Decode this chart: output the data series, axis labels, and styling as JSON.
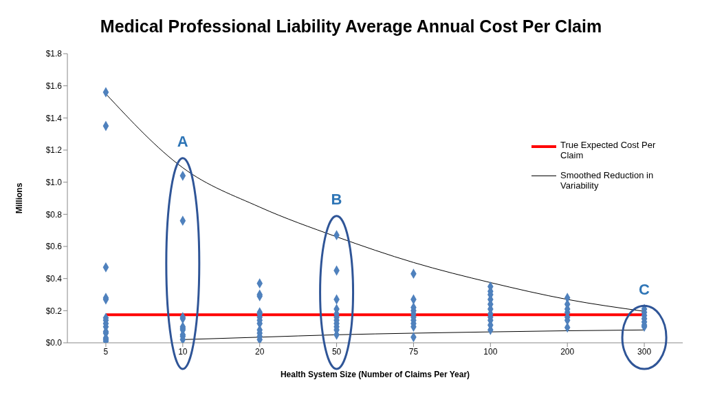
{
  "chart_data": {
    "type": "scatter",
    "title": "Medical Professional Liability Average Annual Cost Per Claim",
    "xlabel": "Health System Size (Number of Claims Per Year)",
    "ylabel": "Millions",
    "categories": [
      "5",
      "10",
      "20",
      "50",
      "75",
      "100",
      "200",
      "300"
    ],
    "ylim": [
      0,
      1.8
    ],
    "yticks": [
      {
        "value": 0,
        "label": "$0.0"
      },
      {
        "value": 0.2,
        "label": "$0.2"
      },
      {
        "value": 0.4,
        "label": "$0.4"
      },
      {
        "value": 0.6,
        "label": "$0.6"
      },
      {
        "value": 0.8,
        "label": "$0.8"
      },
      {
        "value": 1,
        "label": "$1.0"
      },
      {
        "value": 1.2,
        "label": "$1.2"
      },
      {
        "value": 1.4,
        "label": "$1.4"
      },
      {
        "value": 1.6,
        "label": "$1.6"
      },
      {
        "value": 1.8,
        "label": "$1.8"
      }
    ],
    "grid": false,
    "legend": "top right",
    "series": [
      {
        "marker": "diamond",
        "color": "#4f81bd",
        "x": [
          "5",
          "5",
          "5",
          "5",
          "5",
          "5",
          "5",
          "5",
          "5",
          "5",
          "5",
          "5",
          "5",
          "5",
          "10",
          "10",
          "10",
          "10",
          "10",
          "10",
          "10",
          "10",
          "10",
          "10",
          "20",
          "20",
          "20",
          "20",
          "20",
          "20",
          "20",
          "20",
          "20",
          "20",
          "20",
          "20",
          "50",
          "50",
          "50",
          "50",
          "50",
          "50",
          "50",
          "50",
          "50",
          "50",
          "50",
          "75",
          "75",
          "75",
          "75",
          "75",
          "75",
          "75",
          "75",
          "75",
          "75",
          "100",
          "100",
          "100",
          "100",
          "100",
          "100",
          "100",
          "100",
          "100",
          "100",
          "100",
          "200",
          "200",
          "200",
          "200",
          "200",
          "200",
          "200",
          "300",
          "300",
          "300",
          "300",
          "300",
          "300",
          "300"
        ],
        "values": [
          1.56,
          1.35,
          0.47,
          0.28,
          0.27,
          0.155,
          0.14,
          0.12,
          0.1,
          0.07,
          0.06,
          0.03,
          0.02,
          0.01,
          1.04,
          0.76,
          0.16,
          0.15,
          0.1,
          0.09,
          0.08,
          0.05,
          0.04,
          0.02,
          0.37,
          0.3,
          0.29,
          0.19,
          0.18,
          0.16,
          0.14,
          0.12,
          0.08,
          0.06,
          0.04,
          0.02,
          0.67,
          0.45,
          0.27,
          0.21,
          0.18,
          0.16,
          0.14,
          0.12,
          0.1,
          0.08,
          0.05,
          0.43,
          0.27,
          0.22,
          0.2,
          0.18,
          0.16,
          0.14,
          0.12,
          0.1,
          0.035,
          0.35,
          0.32,
          0.3,
          0.27,
          0.24,
          0.21,
          0.18,
          0.16,
          0.14,
          0.11,
          0.08,
          0.28,
          0.24,
          0.21,
          0.19,
          0.16,
          0.14,
          0.095,
          0.21,
          0.19,
          0.17,
          0.15,
          0.13,
          0.11,
          0.1
        ]
      },
      {
        "type": "line",
        "name": "Smoothed Reduction in Variability",
        "color": "#000000",
        "values": [
          1.55,
          1.09,
          0.845,
          0.66,
          0.5,
          0.375,
          0.27,
          0.196
        ]
      },
      {
        "type": "line",
        "color": "#000000",
        "values": [
          null,
          0.02,
          0.035,
          0.05,
          0.06,
          0.068,
          0.075,
          0.08
        ]
      }
    ],
    "ref_lines": [
      {
        "axis": "y",
        "value": 0.175,
        "label": "True Expected Cost Per Claim",
        "color": "#ff0000"
      }
    ],
    "annotations": [
      "A",
      "B",
      "C"
    ]
  }
}
